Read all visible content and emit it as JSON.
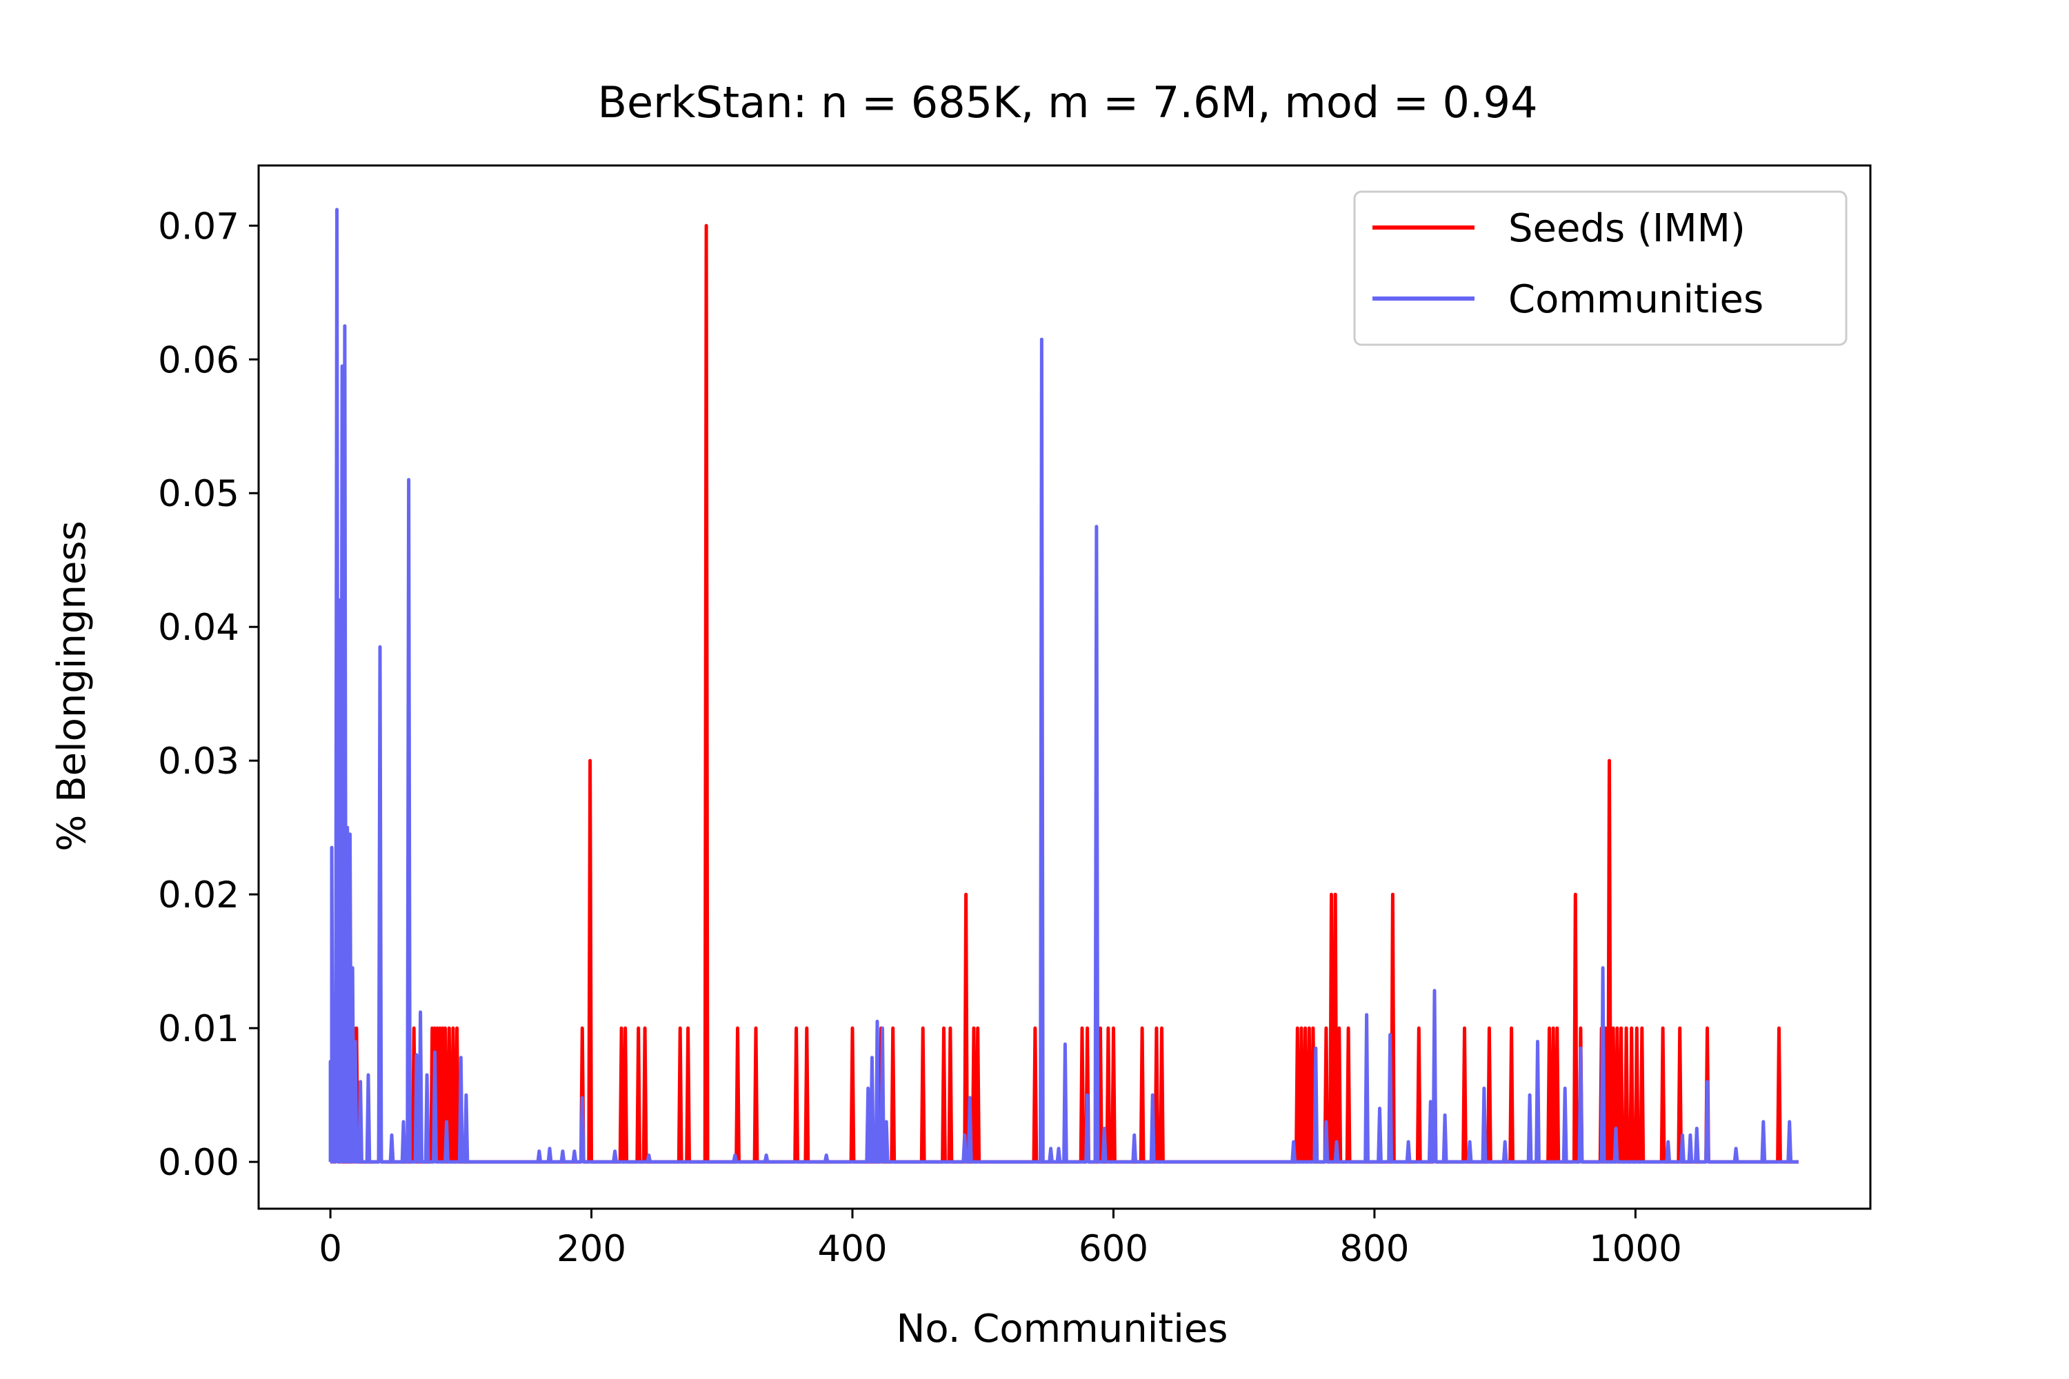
{
  "chart_data": {
    "type": "line",
    "title": "BerkStan: n = 685K, m = 7.6M, mod = 0.94",
    "xlabel": "No. Communities",
    "ylabel": "% Belongingness",
    "xlim": [
      -55,
      1180
    ],
    "ylim": [
      -0.0035,
      0.0745
    ],
    "xticks": [
      0,
      200,
      400,
      600,
      800,
      1000
    ],
    "yticks": [
      0.0,
      0.01,
      0.02,
      0.03,
      0.04,
      0.05,
      0.06,
      0.07
    ],
    "xtick_labels": [
      "0",
      "200",
      "400",
      "600",
      "800",
      "1000"
    ],
    "ytick_labels": [
      "0.00",
      "0.01",
      "0.02",
      "0.03",
      "0.04",
      "0.05",
      "0.06",
      "0.07"
    ],
    "grid": false,
    "legend_position": "top-right",
    "x_max": 1125,
    "series": [
      {
        "name": "Seeds (IMM)",
        "color": "#ff0000",
        "spikes": [
          [
            2,
            0.01
          ],
          [
            5,
            0.01
          ],
          [
            8,
            0.01
          ],
          [
            18,
            0.01
          ],
          [
            20,
            0.01
          ],
          [
            38,
            0.01
          ],
          [
            64,
            0.01
          ],
          [
            78,
            0.01
          ],
          [
            80,
            0.01
          ],
          [
            82,
            0.01
          ],
          [
            84,
            0.01
          ],
          [
            86,
            0.01
          ],
          [
            88,
            0.01
          ],
          [
            91,
            0.01
          ],
          [
            94,
            0.01
          ],
          [
            97,
            0.01
          ],
          [
            193,
            0.01
          ],
          [
            199,
            0.03
          ],
          [
            223,
            0.01
          ],
          [
            226,
            0.01
          ],
          [
            236,
            0.01
          ],
          [
            241,
            0.01
          ],
          [
            268,
            0.01
          ],
          [
            274,
            0.01
          ],
          [
            288,
            0.07
          ],
          [
            312,
            0.01
          ],
          [
            326,
            0.01
          ],
          [
            357,
            0.01
          ],
          [
            365,
            0.01
          ],
          [
            400,
            0.01
          ],
          [
            422,
            0.01
          ],
          [
            431,
            0.01
          ],
          [
            454,
            0.01
          ],
          [
            470,
            0.01
          ],
          [
            475,
            0.01
          ],
          [
            487,
            0.02
          ],
          [
            493,
            0.01
          ],
          [
            496,
            0.01
          ],
          [
            540,
            0.01
          ],
          [
            576,
            0.01
          ],
          [
            580,
            0.01
          ],
          [
            590,
            0.01
          ],
          [
            596,
            0.01
          ],
          [
            600,
            0.01
          ],
          [
            622,
            0.01
          ],
          [
            633,
            0.01
          ],
          [
            637,
            0.01
          ],
          [
            741,
            0.01
          ],
          [
            744,
            0.01
          ],
          [
            747,
            0.01
          ],
          [
            750,
            0.01
          ],
          [
            753,
            0.01
          ],
          [
            763,
            0.01
          ],
          [
            767,
            0.02
          ],
          [
            770,
            0.02
          ],
          [
            773,
            0.01
          ],
          [
            780,
            0.01
          ],
          [
            814,
            0.02
          ],
          [
            834,
            0.01
          ],
          [
            846,
            0.01
          ],
          [
            869,
            0.01
          ],
          [
            888,
            0.01
          ],
          [
            905,
            0.01
          ],
          [
            934,
            0.01
          ],
          [
            937,
            0.01
          ],
          [
            940,
            0.01
          ],
          [
            954,
            0.02
          ],
          [
            958,
            0.01
          ],
          [
            974,
            0.01
          ],
          [
            977,
            0.01
          ],
          [
            980,
            0.03
          ],
          [
            983,
            0.01
          ],
          [
            986,
            0.01
          ],
          [
            989,
            0.01
          ],
          [
            993,
            0.01
          ],
          [
            997,
            0.01
          ],
          [
            1001,
            0.01
          ],
          [
            1005,
            0.01
          ],
          [
            1021,
            0.01
          ],
          [
            1034,
            0.01
          ],
          [
            1055,
            0.01
          ],
          [
            1110,
            0.01
          ]
        ]
      },
      {
        "name": "Communities",
        "color": "#6666f5",
        "spikes": [
          [
            0,
            0.0075
          ],
          [
            1,
            0.0235
          ],
          [
            3,
            0.0125
          ],
          [
            5,
            0.0712
          ],
          [
            7,
            0.042
          ],
          [
            9,
            0.0595
          ],
          [
            11,
            0.0625
          ],
          [
            13,
            0.025
          ],
          [
            15,
            0.0245
          ],
          [
            17,
            0.0145
          ],
          [
            19,
            0.009
          ],
          [
            23,
            0.006
          ],
          [
            29,
            0.0065
          ],
          [
            38,
            0.0385
          ],
          [
            47,
            0.002
          ],
          [
            56,
            0.003
          ],
          [
            60,
            0.051
          ],
          [
            66,
            0.008
          ],
          [
            69,
            0.0112
          ],
          [
            74,
            0.0065
          ],
          [
            80,
            0.0082
          ],
          [
            89,
            0.003
          ],
          [
            100,
            0.0078
          ],
          [
            104,
            0.005
          ],
          [
            160,
            0.0008
          ],
          [
            168,
            0.001
          ],
          [
            178,
            0.0008
          ],
          [
            187,
            0.0008
          ],
          [
            193,
            0.0048
          ],
          [
            218,
            0.0008
          ],
          [
            244,
            0.0005
          ],
          [
            310,
            0.0005
          ],
          [
            334,
            0.0005
          ],
          [
            380,
            0.0005
          ],
          [
            412,
            0.0055
          ],
          [
            415,
            0.0078
          ],
          [
            419,
            0.0105
          ],
          [
            423,
            0.01
          ],
          [
            426,
            0.003
          ],
          [
            486,
            0.002
          ],
          [
            490,
            0.0048
          ],
          [
            545,
            0.0615
          ],
          [
            552,
            0.001
          ],
          [
            558,
            0.001
          ],
          [
            563,
            0.0088
          ],
          [
            580,
            0.005
          ],
          [
            587,
            0.0475
          ],
          [
            593,
            0.0025
          ],
          [
            616,
            0.002
          ],
          [
            630,
            0.005
          ],
          [
            738,
            0.0015
          ],
          [
            755,
            0.0085
          ],
          [
            763,
            0.003
          ],
          [
            771,
            0.0015
          ],
          [
            794,
            0.011
          ],
          [
            804,
            0.004
          ],
          [
            812,
            0.0095
          ],
          [
            826,
            0.0015
          ],
          [
            843,
            0.0045
          ],
          [
            846,
            0.0128
          ],
          [
            854,
            0.0035
          ],
          [
            873,
            0.0015
          ],
          [
            884,
            0.0055
          ],
          [
            900,
            0.0015
          ],
          [
            919,
            0.005
          ],
          [
            925,
            0.009
          ],
          [
            946,
            0.0055
          ],
          [
            958,
            0.0085
          ],
          [
            975,
            0.0145
          ],
          [
            985,
            0.0025
          ],
          [
            1025,
            0.0015
          ],
          [
            1036,
            0.002
          ],
          [
            1042,
            0.002
          ],
          [
            1047,
            0.0025
          ],
          [
            1055,
            0.006
          ],
          [
            1077,
            0.001
          ],
          [
            1098,
            0.003
          ],
          [
            1118,
            0.003
          ]
        ]
      }
    ]
  }
}
